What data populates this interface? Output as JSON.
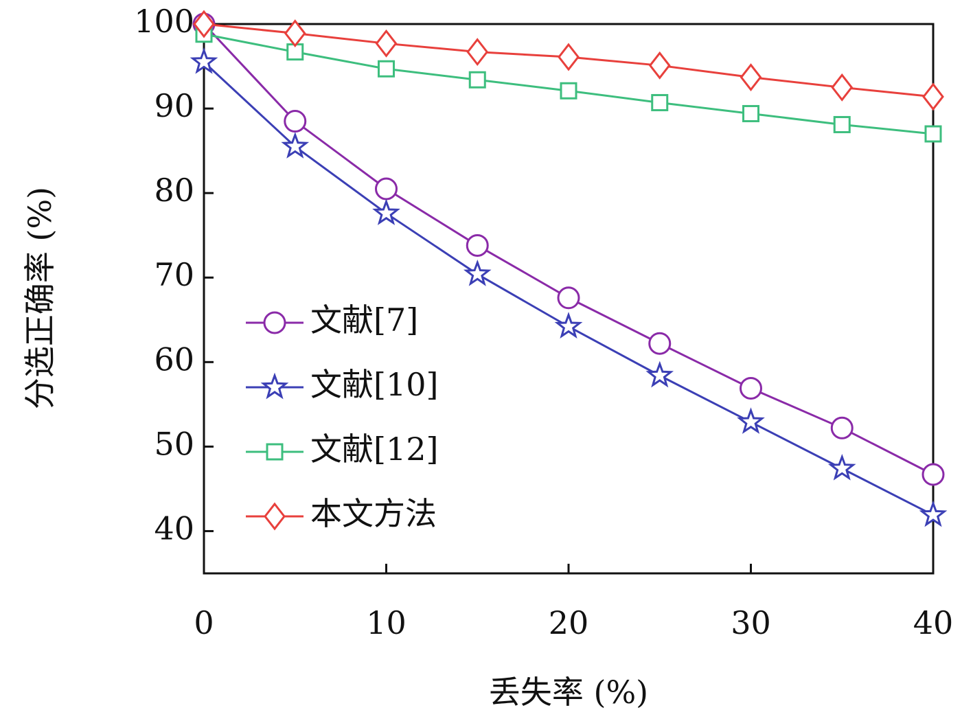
{
  "chart_data": {
    "type": "line",
    "x_label": "丢失率 (%)",
    "y_label": "分选正确率 (%)",
    "x": [
      0,
      5,
      10,
      15,
      20,
      25,
      30,
      35,
      40
    ],
    "xlim": [
      0,
      40
    ],
    "xticks": [
      0,
      10,
      20,
      30,
      40
    ],
    "ylim": [
      35,
      100
    ],
    "yticks": [
      40,
      50,
      60,
      70,
      80,
      90,
      100
    ],
    "legend": "center-left",
    "series": [
      {
        "name": "文献[7]",
        "color": "#8a2aa8",
        "marker": "circle",
        "values": [
          100,
          88.5,
          80.5,
          73.8,
          67.6,
          62.2,
          56.9,
          52.2,
          46.7
        ]
      },
      {
        "name": "文献[10]",
        "color": "#3b3fb5",
        "marker": "star",
        "values": [
          95.5,
          85.5,
          77.6,
          70.4,
          64.2,
          58.4,
          52.9,
          47.4,
          41.9
        ]
      },
      {
        "name": "文献[12]",
        "color": "#3dbe7e",
        "marker": "square",
        "values": [
          98.8,
          96.7,
          94.7,
          93.4,
          92.1,
          90.7,
          89.4,
          88.1,
          87
        ]
      },
      {
        "name": "本文方法",
        "color": "#e8403c",
        "marker": "diamond",
        "values": [
          100,
          98.9,
          97.7,
          96.7,
          96.1,
          95.1,
          93.7,
          92.5,
          91.4
        ]
      }
    ]
  }
}
